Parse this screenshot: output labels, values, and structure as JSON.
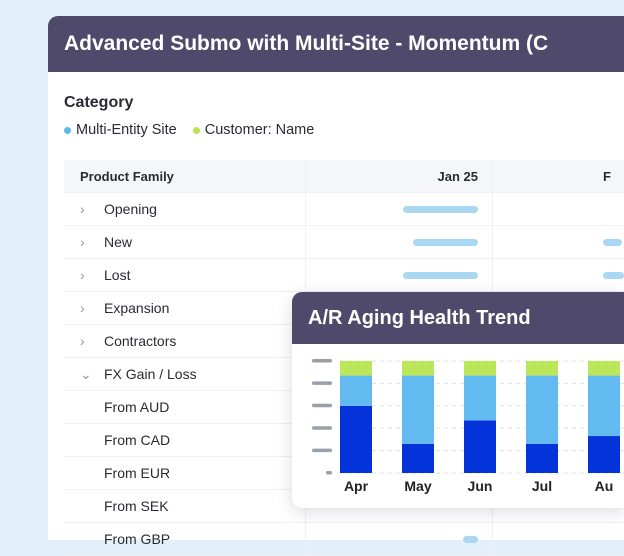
{
  "window": {
    "title": "Advanced Submo with Multi-Site - Momentum (C"
  },
  "category": {
    "label": "Category",
    "legend": [
      {
        "label": "Multi-Entity Site",
        "color": "#5bb8ea"
      },
      {
        "label": "Customer: Name",
        "color": "#b9e34f"
      }
    ]
  },
  "table": {
    "header": {
      "col1": "Product Family",
      "col2": "Jan 25",
      "col3": "F"
    },
    "rows": [
      {
        "label": "Opening",
        "chevron": "right",
        "bar2": 0.4,
        "bar3": 0
      },
      {
        "label": "New",
        "chevron": "right",
        "bar2": 0.35,
        "bar3": 0.1
      },
      {
        "label": "Lost",
        "chevron": "right",
        "bar2": 0.4,
        "bar3": 0.2
      },
      {
        "label": "Expansion",
        "chevron": "right"
      },
      {
        "label": "Contractors",
        "chevron": "right"
      },
      {
        "label": "FX Gain / Loss",
        "chevron": "down"
      },
      {
        "label": "From AUD",
        "sub": true
      },
      {
        "label": "From CAD",
        "sub": true
      },
      {
        "label": "From EUR",
        "sub": true
      },
      {
        "label": "From SEK",
        "sub": true
      },
      {
        "label": "From GBP",
        "sub": true,
        "bar2": 0.08
      }
    ]
  },
  "chart_data": {
    "type": "bar",
    "stacked": true,
    "title": "A/R Aging Health Trend",
    "categories": [
      "Apr",
      "May",
      "Jun",
      "Jul",
      "Au"
    ],
    "series": [
      {
        "values": [
          60,
          26,
          47,
          26,
          33
        ],
        "color": "#0433d9"
      },
      {
        "values": [
          27,
          61,
          40,
          61,
          54
        ],
        "color": "#63baf0"
      },
      {
        "values": [
          13,
          13,
          13,
          13,
          13
        ],
        "color": "#bde75a"
      }
    ],
    "ylim": [
      0,
      100
    ],
    "grid": true,
    "unit": "percent"
  }
}
